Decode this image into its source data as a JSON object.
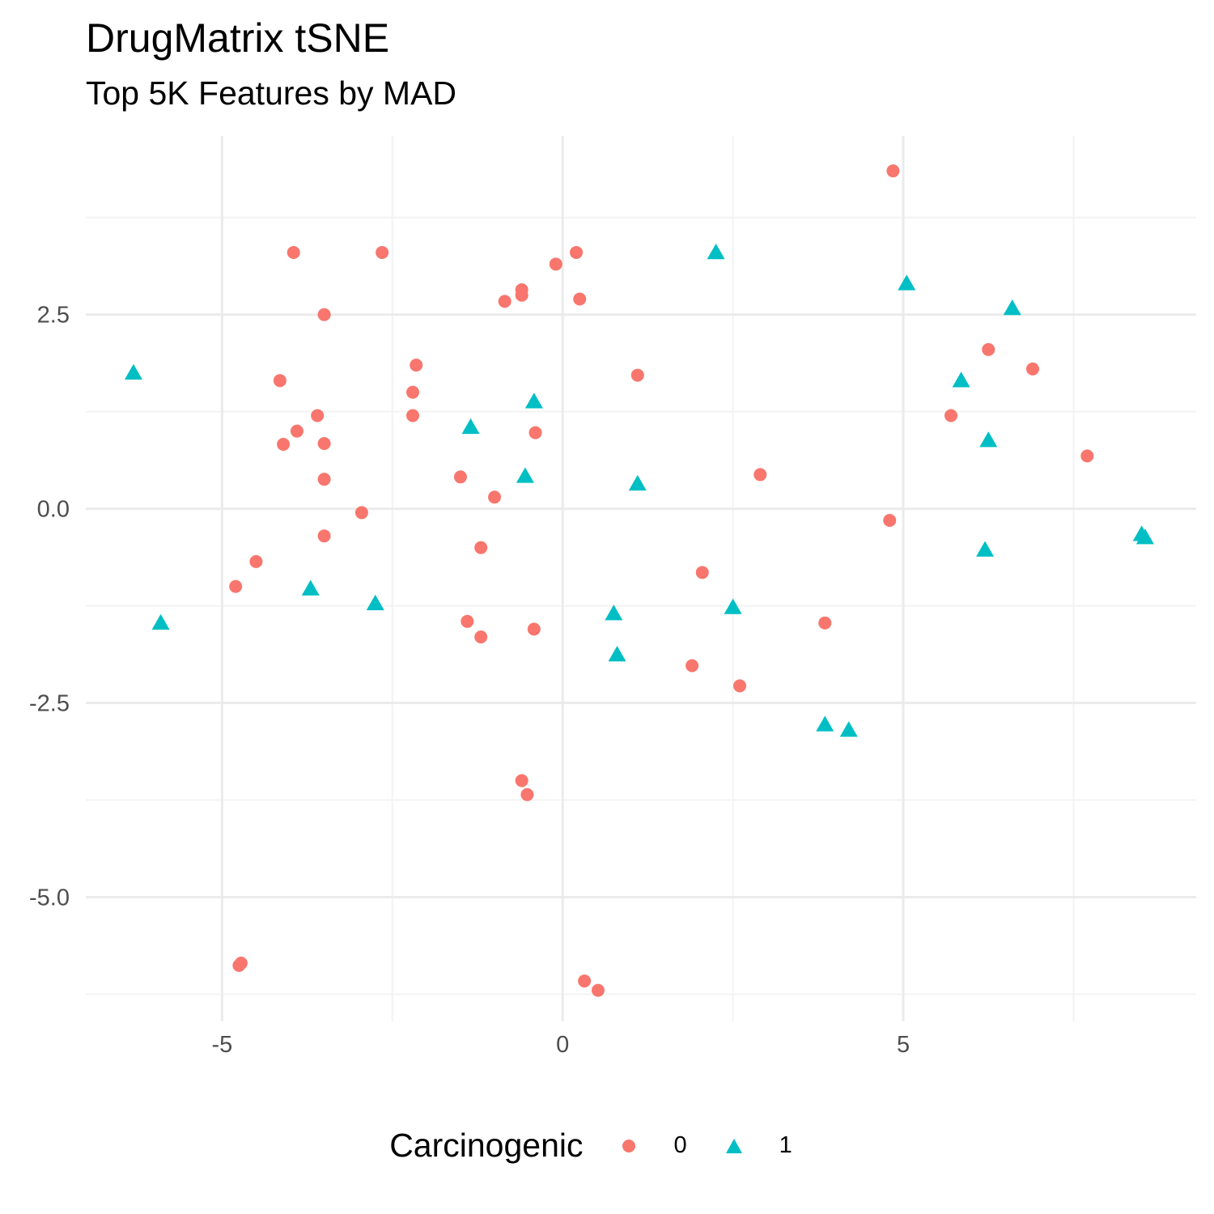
{
  "chart_data": {
    "type": "scatter",
    "title": "DrugMatrix tSNE",
    "subtitle": "Top 5K Features by MAD",
    "xlabel": "",
    "ylabel": "",
    "xlim": [
      -7.0,
      9.3
    ],
    "ylim": [
      -6.6,
      4.8
    ],
    "x_ticks": [
      -5,
      0,
      5
    ],
    "x_tick_labels": [
      "-5",
      "0",
      "5"
    ],
    "y_ticks": [
      2.5,
      0.0,
      -2.5,
      -5.0
    ],
    "y_tick_labels": [
      "2.5",
      "0.0",
      "-2.5",
      "-5.0"
    ],
    "grid": true,
    "legend_position": "bottom",
    "legend_title": "Carcinogenic",
    "colors": {
      "0": "#F8766D",
      "1": "#00BFC4",
      "grid_major": "#EBEBEB",
      "grid_minor": "#F3F3F3"
    },
    "series": [
      {
        "name": "0",
        "marker": "circle",
        "points": [
          [
            4.85,
            4.35
          ],
          [
            -3.95,
            3.3
          ],
          [
            -2.65,
            3.3
          ],
          [
            0.2,
            3.3
          ],
          [
            -0.1,
            3.15
          ],
          [
            -0.6,
            2.82
          ],
          [
            -0.6,
            2.75
          ],
          [
            -0.85,
            2.67
          ],
          [
            0.25,
            2.7
          ],
          [
            -3.5,
            2.5
          ],
          [
            -2.15,
            1.85
          ],
          [
            -4.15,
            1.65
          ],
          [
            1.1,
            1.72
          ],
          [
            -2.2,
            1.5
          ],
          [
            -2.2,
            1.2
          ],
          [
            -3.6,
            1.2
          ],
          [
            -3.9,
            1.0
          ],
          [
            -0.4,
            0.98
          ],
          [
            -4.1,
            0.83
          ],
          [
            -3.5,
            0.84
          ],
          [
            -3.5,
            0.38
          ],
          [
            -1.5,
            0.41
          ],
          [
            -1.0,
            0.15
          ],
          [
            -2.95,
            -0.05
          ],
          [
            -3.5,
            -0.35
          ],
          [
            -1.2,
            -0.5
          ],
          [
            -4.5,
            -0.68
          ],
          [
            -4.8,
            -1.0
          ],
          [
            -1.4,
            -1.45
          ],
          [
            -1.2,
            -1.65
          ],
          [
            -0.42,
            -1.55
          ],
          [
            2.05,
            -0.82
          ],
          [
            1.9,
            -2.02
          ],
          [
            2.6,
            -2.28
          ],
          [
            3.85,
            -1.47
          ],
          [
            2.9,
            0.44
          ],
          [
            4.8,
            -0.15
          ],
          [
            6.25,
            2.05
          ],
          [
            6.9,
            1.8
          ],
          [
            5.7,
            1.2
          ],
          [
            7.7,
            0.68
          ],
          [
            -0.6,
            -3.5
          ],
          [
            -0.52,
            -3.68
          ],
          [
            -4.75,
            -5.88
          ],
          [
            -4.72,
            -5.85
          ],
          [
            0.32,
            -6.08
          ],
          [
            0.52,
            -6.2
          ]
        ]
      },
      {
        "name": "1",
        "marker": "triangle",
        "points": [
          [
            2.25,
            3.3
          ],
          [
            5.05,
            2.9
          ],
          [
            6.6,
            2.58
          ],
          [
            -6.3,
            1.75
          ],
          [
            5.85,
            1.65
          ],
          [
            -0.42,
            1.38
          ],
          [
            -1.35,
            1.05
          ],
          [
            6.25,
            0.88
          ],
          [
            -0.55,
            0.42
          ],
          [
            1.1,
            0.32
          ],
          [
            8.5,
            -0.33
          ],
          [
            8.55,
            -0.37
          ],
          [
            6.2,
            -0.53
          ],
          [
            -3.7,
            -1.03
          ],
          [
            -2.75,
            -1.22
          ],
          [
            -5.9,
            -1.47
          ],
          [
            0.75,
            -1.35
          ],
          [
            2.5,
            -1.27
          ],
          [
            0.8,
            -1.88
          ],
          [
            3.85,
            -2.78
          ],
          [
            4.2,
            -2.85
          ]
        ]
      }
    ]
  }
}
